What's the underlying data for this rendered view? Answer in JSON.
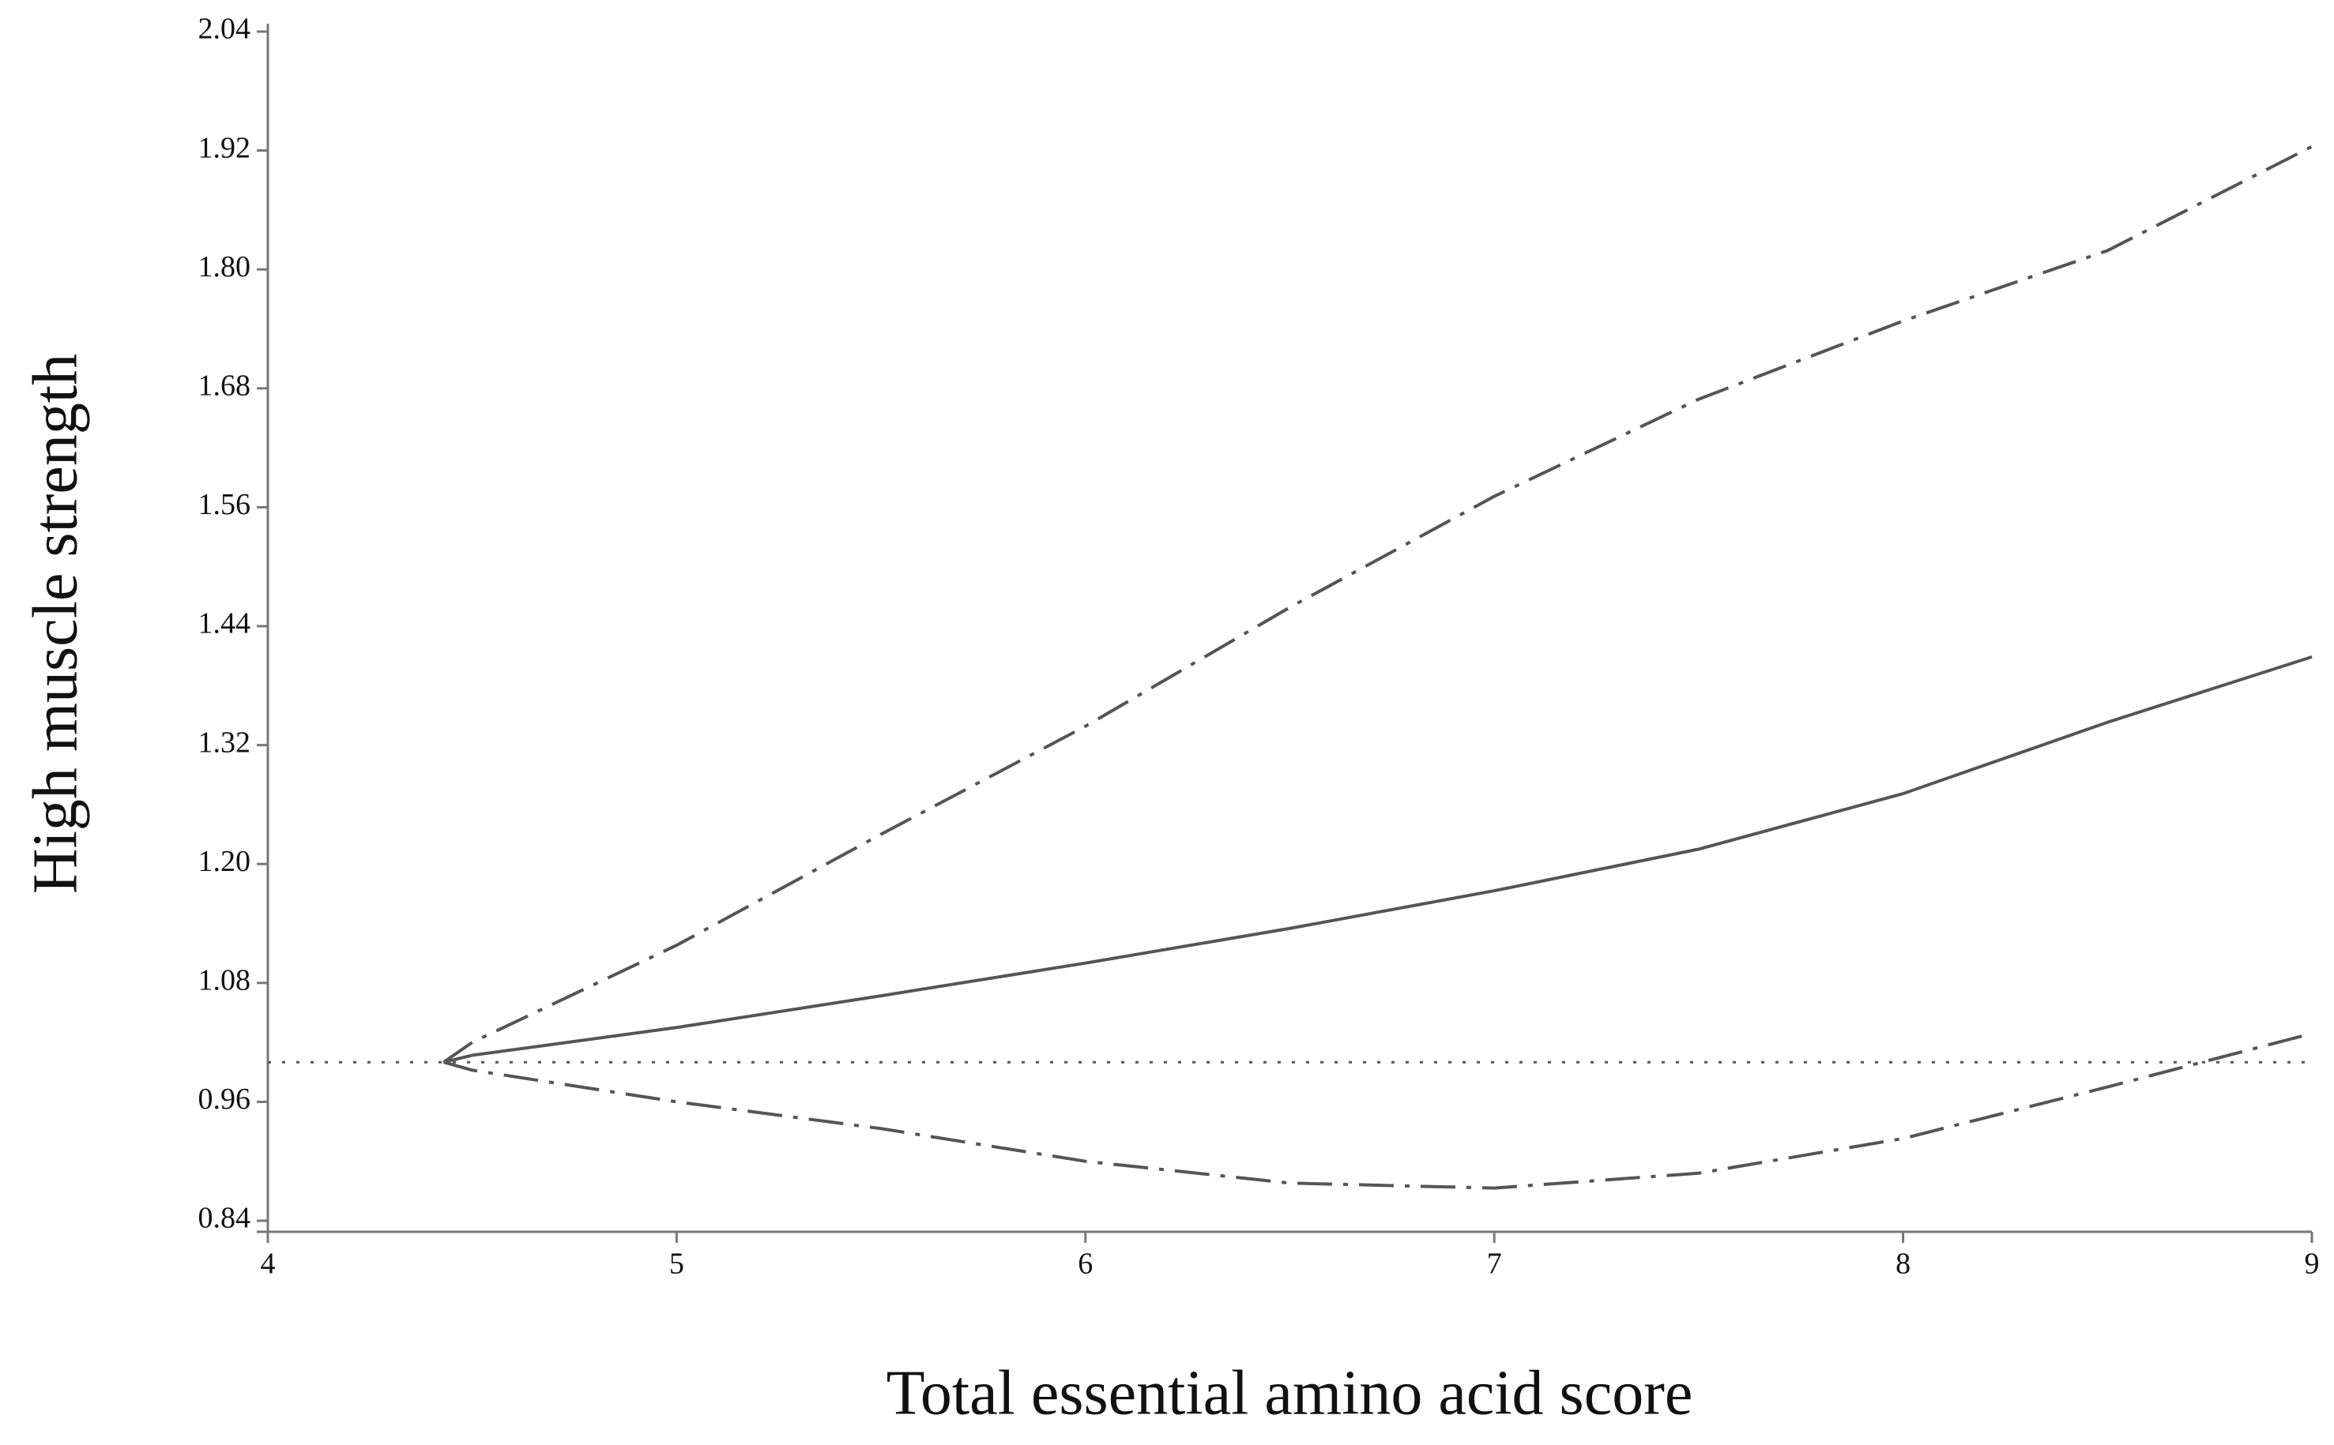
{
  "chart_data": {
    "type": "line",
    "x_label": "Total essential amino acid score",
    "y_label": "High muscle strength",
    "x": [
      4.43,
      4.5,
      5,
      5.5,
      6,
      6.5,
      7,
      7.5,
      8,
      8.5,
      9
    ],
    "series": [
      {
        "color": "#555555",
        "dash": "solid",
        "values": [
          1.0,
          1.007,
          1.035,
          1.067,
          1.1,
          1.135,
          1.173,
          1.215,
          1.271,
          1.343,
          1.409
        ]
      },
      {
        "color": "#555555",
        "dash": "dashdot",
        "values": [
          1.0,
          1.02,
          1.118,
          1.23,
          1.339,
          1.459,
          1.571,
          1.669,
          1.748,
          1.819,
          1.924
        ]
      },
      {
        "color": "#555555",
        "dash": "dashdot",
        "values": [
          1.0,
          0.992,
          0.96,
          0.933,
          0.9,
          0.878,
          0.873,
          0.888,
          0.923,
          0.975,
          1.029
        ]
      }
    ],
    "reference_y": 1,
    "xlim": [
      4,
      9
    ],
    "xticks": [
      4,
      5,
      6,
      7,
      8,
      9
    ],
    "ylim": [
      0.84,
      2.04
    ],
    "yticks": [
      0.84,
      0.96,
      1.08,
      {
        "value": 1.2,
        "label": "1.20"
      },
      1.32,
      1.44,
      1.56,
      1.68,
      {
        "value": 1.8,
        "label": "1.80"
      },
      1.92,
      2.04
    ]
  }
}
